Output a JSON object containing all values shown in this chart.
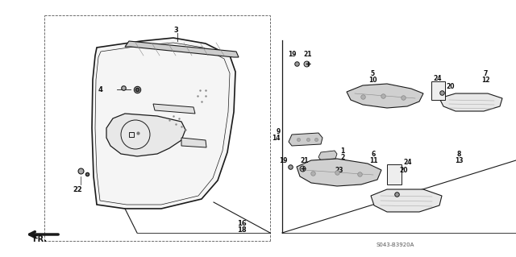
{
  "bg_color": "#ffffff",
  "line_color": "#1a1a1a",
  "gray_color": "#999999",
  "fig_width": 6.4,
  "fig_height": 3.19,
  "dpi": 100,
  "diagram_code": "S043-B3920A"
}
